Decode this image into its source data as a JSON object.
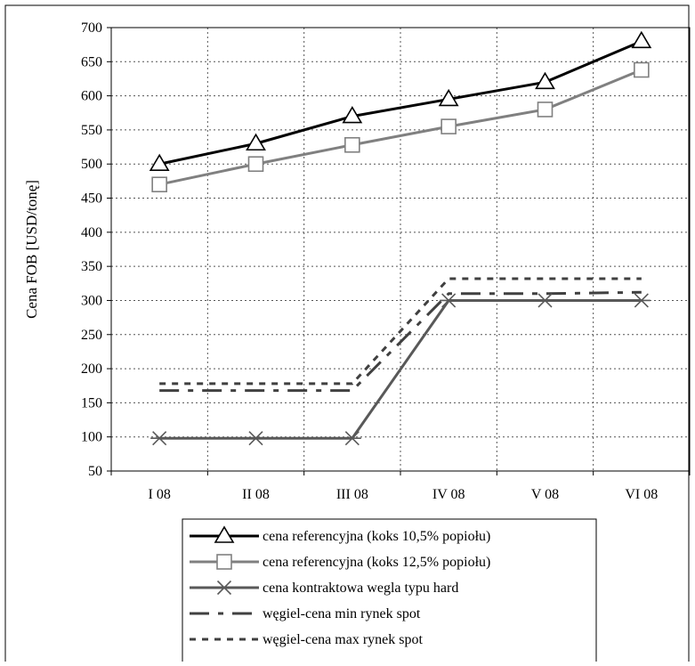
{
  "chart_data": {
    "type": "line",
    "title": "",
    "xlabel": "",
    "ylabel": "Cena FOB [USD/tonę]",
    "categories": [
      "I 08",
      "II 08",
      "III 08",
      "IV 08",
      "V 08",
      "VI 08"
    ],
    "ylim": [
      50,
      700
    ],
    "yticks": [
      50,
      100,
      150,
      200,
      250,
      300,
      350,
      400,
      450,
      500,
      550,
      600,
      650,
      700
    ],
    "grid": true,
    "legend_position": "bottom",
    "series": [
      {
        "name": "cena referencyjna (koks 10,5% popiołu)",
        "values": [
          500,
          530,
          570,
          595,
          620,
          680
        ],
        "color": "#000000",
        "marker": "triangle",
        "dash": "solid"
      },
      {
        "name": "cena referencyjna (koks 12,5% popiołu)",
        "values": [
          470,
          500,
          528,
          555,
          580,
          638
        ],
        "color": "#808080",
        "marker": "square",
        "dash": "solid"
      },
      {
        "name": "cena kontraktowa wegla typu hard",
        "values": [
          98,
          98,
          98,
          300,
          300,
          300
        ],
        "color": "#595959",
        "marker": "asterisk",
        "dash": "solid"
      },
      {
        "name": "węgiel-cena min rynek spot",
        "values": [
          168,
          168,
          168,
          310,
          310,
          312
        ],
        "color": "#404040",
        "marker": "none",
        "dash": "longdash"
      },
      {
        "name": "węgiel-cena max rynek spot",
        "values": [
          178,
          178,
          178,
          332,
          332,
          332
        ],
        "color": "#404040",
        "marker": "none",
        "dash": "shortdash"
      }
    ]
  }
}
